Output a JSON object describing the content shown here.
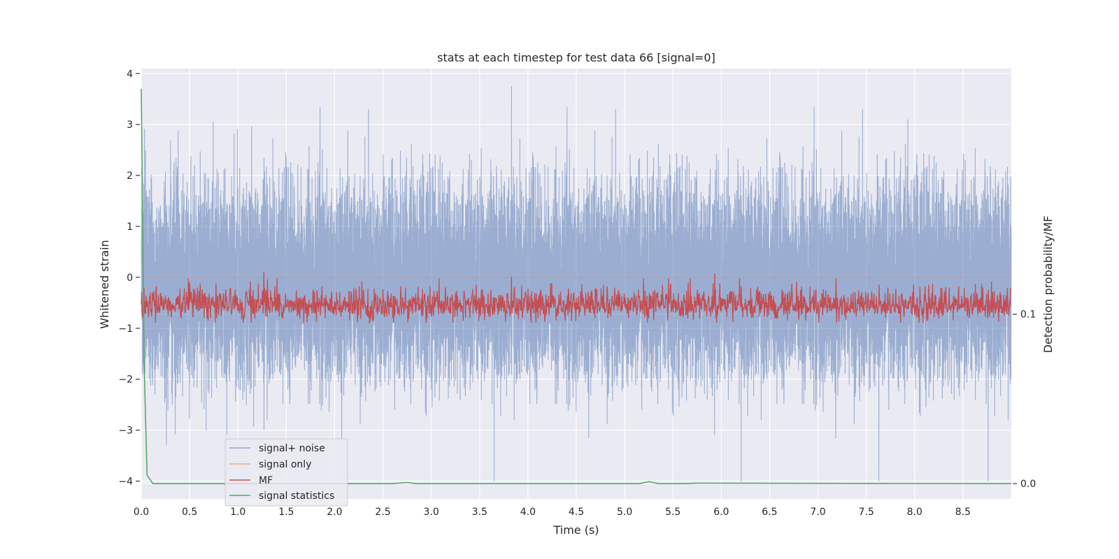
{
  "chart_data": {
    "type": "line",
    "title": "stats at each timestep for test data 66 [signal=0]",
    "xlabel": "Time (s)",
    "ylabel": "Whitened strain",
    "ylabel_right": "Detection probability/MF",
    "xlim": [
      0.0,
      9.0
    ],
    "ylim": [
      -4.35,
      4.1
    ],
    "ylim_right": [
      -0.009,
      0.245
    ],
    "x_ticks": [
      "0.0",
      "0.5",
      "1.0",
      "1.5",
      "2.0",
      "2.5",
      "3.0",
      "3.5",
      "4.0",
      "4.5",
      "5.0",
      "5.5",
      "6.0",
      "6.5",
      "7.0",
      "7.5",
      "8.0",
      "8.5"
    ],
    "y_ticks": [
      "4",
      "3",
      "2",
      "1",
      "0",
      "−1",
      "−2",
      "−3",
      "−4"
    ],
    "y_ticks_right": [
      "0.1",
      "0.0"
    ],
    "grid": true,
    "legend_position": "lower-left",
    "colors": {
      "signal_noise": "#4c72b0",
      "signal_only": "#dd8452",
      "mf": "#c44e52",
      "statistics": "#55a868",
      "background": "#eaeaf2"
    },
    "series": [
      {
        "name": "signal+ noise",
        "axis": "left",
        "sample_rate_hz": 2048,
        "duration_s": 9.0,
        "approx_mean": -0.1,
        "approx_std": 0.9,
        "approx_range": [
          -4.0,
          3.75
        ],
        "notable_peaks": [
          {
            "x": 3.83,
            "y": 3.75
          },
          {
            "x": 7.93,
            "y": 3.1
          },
          {
            "x": 7.63,
            "y": -4.0
          },
          {
            "x": 5.93,
            "y": -3.1
          },
          {
            "x": 1.27,
            "y": -3.0
          }
        ]
      },
      {
        "name": "signal only",
        "axis": "left",
        "x": [
          0.0,
          9.0
        ],
        "values": [
          0.0,
          0.0
        ]
      },
      {
        "name": "MF",
        "axis": "right",
        "approx_mean": 0.105,
        "approx_range": [
          0.095,
          0.125
        ],
        "notable_peaks": [
          {
            "x": 1.27,
            "y": 0.125
          },
          {
            "x": 5.93,
            "y": 0.124
          },
          {
            "x": 3.83,
            "y": 0.122
          }
        ]
      },
      {
        "name": "signal statistics",
        "axis": "right",
        "x": [
          0.0,
          0.03,
          0.06,
          0.12,
          2.6,
          2.75,
          2.85,
          5.15,
          5.25,
          5.35,
          5.6,
          5.75,
          9.0
        ],
        "values": [
          0.233,
          0.07,
          0.005,
          0.0,
          0.0,
          0.0007,
          0.0,
          0.0,
          0.0012,
          0.0,
          0.0,
          0.0003,
          0.0
        ]
      }
    ]
  }
}
